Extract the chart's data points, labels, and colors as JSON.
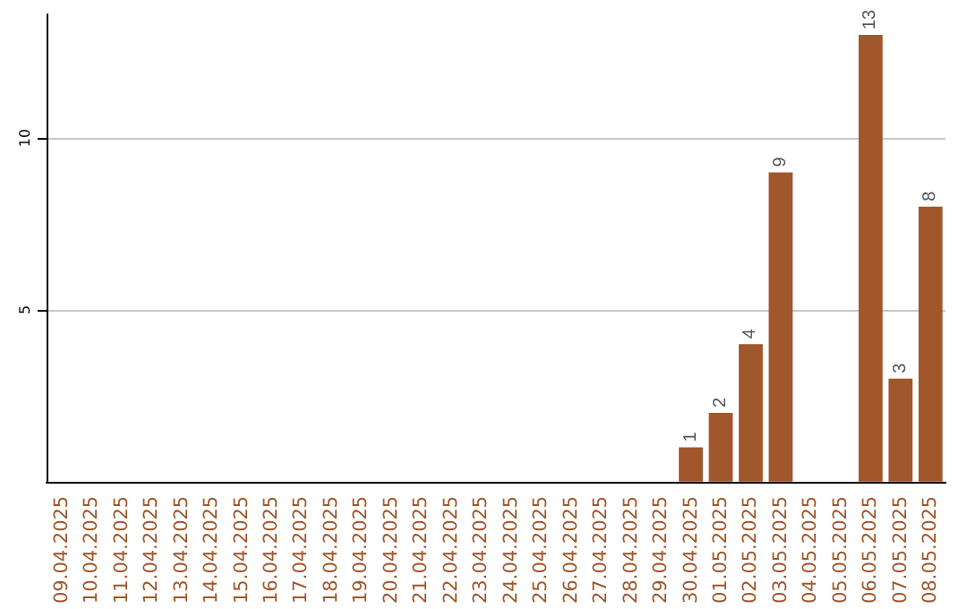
{
  "chart_data": {
    "type": "bar",
    "categories": [
      "09.04.2025",
      "10.04.2025",
      "11.04.2025",
      "12.04.2025",
      "13.04.2025",
      "14.04.2025",
      "15.04.2025",
      "16.04.2025",
      "17.04.2025",
      "18.04.2025",
      "19.04.2025",
      "20.04.2025",
      "21.04.2025",
      "22.04.2025",
      "23.04.2025",
      "24.04.2025",
      "25.04.2025",
      "26.04.2025",
      "27.04.2025",
      "28.04.2025",
      "29.04.2025",
      "30.04.2025",
      "01.05.2025",
      "02.05.2025",
      "03.05.2025",
      "04.05.2025",
      "05.05.2025",
      "06.05.2025",
      "07.05.2025",
      "08.05.2025"
    ],
    "values": [
      null,
      null,
      null,
      null,
      null,
      null,
      null,
      null,
      null,
      null,
      null,
      null,
      null,
      null,
      null,
      null,
      null,
      null,
      null,
      null,
      null,
      1,
      2,
      4,
      9,
      null,
      null,
      13,
      3,
      8
    ],
    "color": "#a0572b",
    "ylim": [
      0,
      13.6
    ],
    "yticks": [
      5,
      10
    ],
    "grid": "y",
    "data_labels": true
  }
}
